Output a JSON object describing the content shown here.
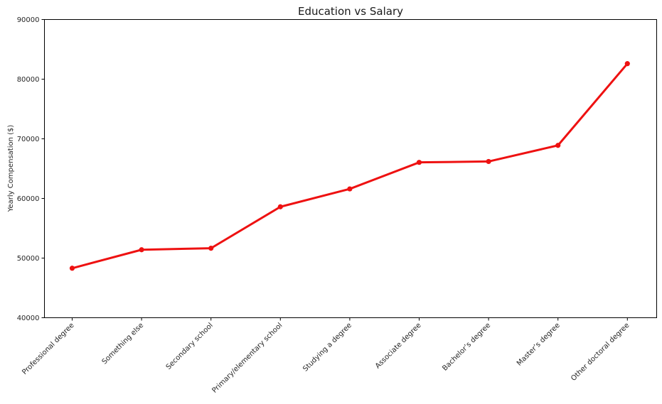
{
  "chart_data": {
    "type": "line",
    "title": "Education vs Salary",
    "xlabel": "",
    "ylabel": "Yearly Compensation ($)",
    "ylim": [
      40000,
      90000
    ],
    "yticks": [
      "40000",
      "50000",
      "60000",
      "70000",
      "80000",
      "90000"
    ],
    "grid": false,
    "categories": [
      "Professional degree",
      "Something else",
      "Secondary school",
      "Primary/elementary school",
      "Studying a degree",
      "Associate degree",
      "Bachelor’s degree",
      "Master’s degree",
      "Other doctoral degree"
    ],
    "series": [
      {
        "values": [
          48300,
          51400,
          51650,
          58600,
          61600,
          66050,
          66200,
          68900,
          82600
        ],
        "color": "#ee1111"
      }
    ]
  }
}
